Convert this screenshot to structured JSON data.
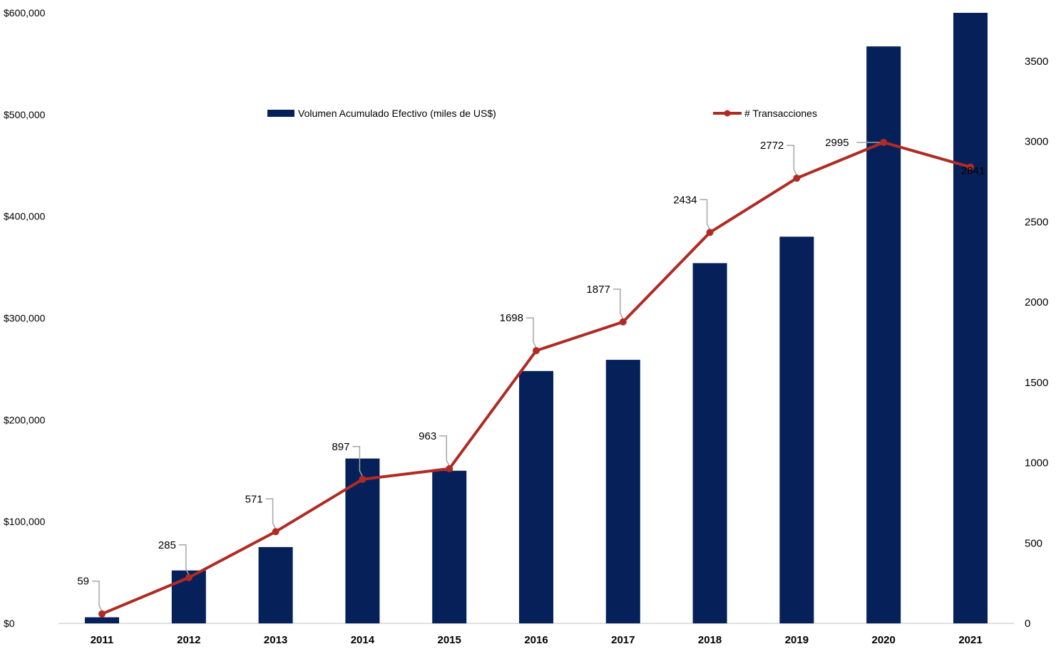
{
  "chart_data": {
    "type": "bar",
    "categories": [
      "2011",
      "2012",
      "2013",
      "2014",
      "2015",
      "2016",
      "2017",
      "2018",
      "2019",
      "2020",
      "2021"
    ],
    "series": [
      {
        "name": "Volumen Acumulado Efectivo (miles de US$)",
        "type": "bar",
        "axis": "left",
        "values": [
          6000,
          52000,
          75000,
          162000,
          150000,
          248000,
          259000,
          354000,
          380000,
          567000,
          600000
        ],
        "color": "#06215a"
      },
      {
        "name": "# Transacciones",
        "type": "line",
        "axis": "right",
        "values": [
          59,
          285,
          571,
          897,
          963,
          1698,
          1877,
          2434,
          2772,
          2995,
          2841
        ],
        "labels": [
          "59",
          "285",
          "571",
          "897",
          "963",
          "1698",
          "1877",
          "2434",
          "2772",
          "2995",
          "2841"
        ],
        "color": "#b02b23"
      }
    ],
    "y_left": {
      "ylim": [
        0,
        600000
      ],
      "ticks": [
        0,
        100000,
        200000,
        300000,
        400000,
        500000,
        600000
      ],
      "tick_labels": [
        "$0",
        "$100,000",
        "$200,000",
        "$300,000",
        "$400,000",
        "$500,000",
        "$600,000"
      ]
    },
    "y_right": {
      "ylim": [
        0,
        3800
      ],
      "ticks": [
        0,
        500,
        1000,
        1500,
        2000,
        2500,
        3000,
        3500
      ],
      "tick_labels": [
        "0",
        "500",
        "1000",
        "1500",
        "2000",
        "2500",
        "3000",
        "3500"
      ]
    },
    "title": "",
    "xlabel": "",
    "grid": false,
    "legend": "top"
  }
}
